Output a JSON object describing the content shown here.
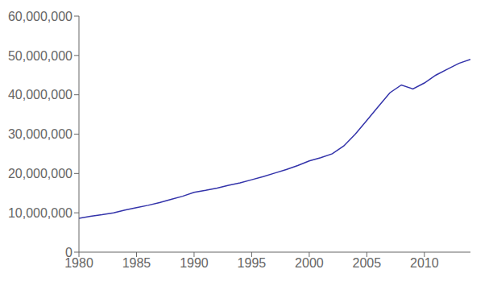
{
  "chart_data": {
    "type": "line",
    "x": [
      1980,
      1981,
      1982,
      1983,
      1984,
      1985,
      1986,
      1987,
      1988,
      1989,
      1990,
      1991,
      1992,
      1993,
      1994,
      1995,
      1996,
      1997,
      1998,
      1999,
      2000,
      2001,
      2002,
      2003,
      2004,
      2005,
      2006,
      2007,
      2008,
      2009,
      2010,
      2011,
      2012,
      2013,
      2014
    ],
    "values": [
      8600000,
      9100000,
      9500000,
      10000000,
      10700000,
      11300000,
      11900000,
      12600000,
      13400000,
      14200000,
      15200000,
      15700000,
      16300000,
      17000000,
      17600000,
      18400000,
      19200000,
      20100000,
      21000000,
      22000000,
      23200000,
      24000000,
      25000000,
      27000000,
      30000000,
      33500000,
      37000000,
      40500000,
      42500000,
      41500000,
      43000000,
      45000000,
      46500000,
      48000000,
      49000000
    ],
    "color": "#3333aa",
    "xlim": [
      1980,
      2014
    ],
    "ylim": [
      0,
      60000000
    ],
    "xticks": [
      1980,
      1985,
      1990,
      1995,
      2000,
      2005,
      2010
    ],
    "yticks": [
      0,
      {
        "value": 10000000,
        "label": "10,000,000"
      },
      {
        "value": 20000000,
        "label": "20,000,000"
      },
      {
        "value": 30000000,
        "label": "30,000,000"
      },
      {
        "value": 40000000,
        "label": "40,000,000"
      },
      {
        "value": 50000000,
        "label": "50,000,000"
      },
      {
        "value": 60000000,
        "label": "60,000,000"
      }
    ],
    "grid": false
  }
}
